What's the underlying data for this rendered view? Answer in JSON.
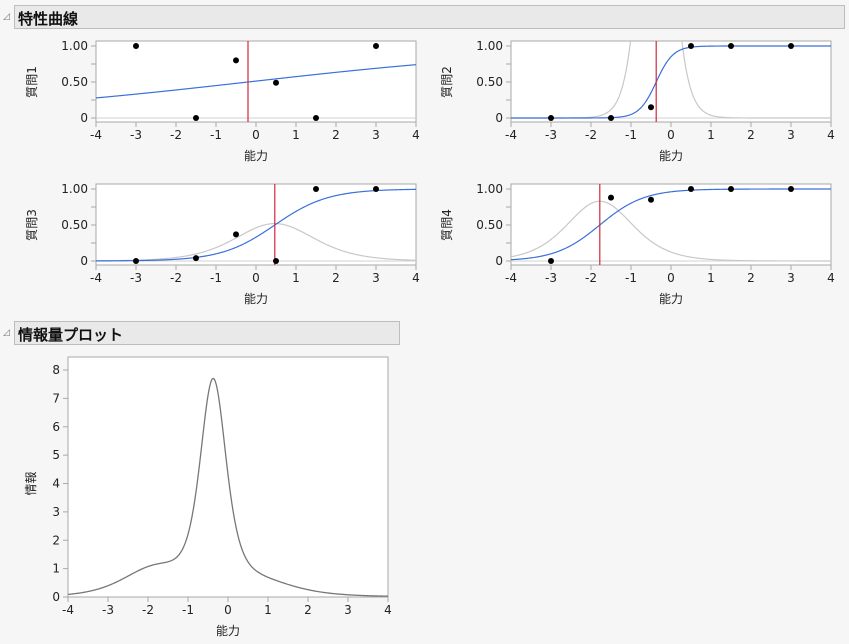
{
  "sections": {
    "icc": {
      "title": "特性曲線",
      "disclosure_icon": "◿"
    },
    "info": {
      "title": "情報量プロット",
      "disclosure_icon": "◿"
    }
  },
  "colors": {
    "icc_curve": "#3b6fdc",
    "info_curve_in_icc": "#c8c8c8",
    "threshold_line": "#d0283c",
    "info_curve": "#777777",
    "frame": "#a8a8a8",
    "points": "#000000"
  },
  "chart_data": [
    {
      "type": "line",
      "title": "質問1",
      "xlabel": "能力",
      "ylabel": "質問1",
      "xlim": [
        -4,
        4
      ],
      "ylim": [
        0,
        1
      ],
      "xticks": [
        -4,
        -3,
        -2,
        -1,
        0,
        1,
        2,
        3,
        4
      ],
      "yticks": [
        "0",
        "0.50",
        "1.00"
      ],
      "threshold": -0.2,
      "model": {
        "a": 0.25,
        "b": -0.2
      },
      "series": [
        {
          "name": "ICC",
          "x": [
            -4,
            -3,
            -2,
            -1,
            0,
            1,
            2,
            3,
            4
          ],
          "values": [
            0.28,
            0.33,
            0.39,
            0.43,
            0.51,
            0.57,
            0.63,
            0.68,
            0.74
          ]
        },
        {
          "name": "observed",
          "x": [
            -3,
            -1.5,
            -0.5,
            0.5,
            1.5,
            3
          ],
          "values": [
            1.0,
            0.0,
            0.8,
            0.49,
            0.0,
            1.0
          ]
        }
      ]
    },
    {
      "type": "line",
      "title": "質問2",
      "xlabel": "能力",
      "ylabel": "質問2",
      "xlim": [
        -4,
        4
      ],
      "ylim": [
        0,
        1
      ],
      "xticks": [
        -4,
        -3,
        -2,
        -1,
        0,
        1,
        2,
        3,
        4
      ],
      "yticks": [
        "0",
        "0.50",
        "1.00"
      ],
      "threshold": -0.37,
      "model": {
        "a": 4.7,
        "b": -0.37
      },
      "series": [
        {
          "name": "ICC",
          "x": [
            -4,
            -2,
            -1,
            -0.5,
            -0.37,
            0,
            0.5,
            1,
            2,
            4
          ],
          "values": [
            0,
            0,
            0.05,
            0.35,
            0.5,
            0.85,
            0.98,
            1.0,
            1.0,
            1.0
          ]
        },
        {
          "name": "observed",
          "x": [
            -3,
            -1.5,
            -0.5,
            0.5,
            1.5,
            3
          ],
          "values": [
            0.0,
            0.0,
            0.15,
            1.0,
            1.0,
            1.0
          ]
        }
      ]
    },
    {
      "type": "line",
      "title": "質問3",
      "xlabel": "能力",
      "ylabel": "質問3",
      "xlim": [
        -4,
        4
      ],
      "ylim": [
        0,
        1
      ],
      "xticks": [
        -4,
        -3,
        -2,
        -1,
        0,
        1,
        2,
        3,
        4
      ],
      "yticks": [
        "0",
        "0.50",
        "1.00"
      ],
      "threshold": 0.47,
      "model": {
        "a": 1.5,
        "b": 0.47
      },
      "series": [
        {
          "name": "ICC",
          "x": [
            -4,
            -3,
            -2,
            -1,
            0,
            0.47,
            1,
            2,
            3,
            4
          ],
          "values": [
            0.0,
            0.01,
            0.03,
            0.1,
            0.33,
            0.5,
            0.69,
            0.91,
            0.98,
            1.0
          ]
        },
        {
          "name": "observed",
          "x": [
            -3,
            -1.5,
            -0.5,
            0.5,
            1.5,
            3
          ],
          "values": [
            0.0,
            0.04,
            0.37,
            0.0,
            1.0,
            1.0
          ]
        }
      ]
    },
    {
      "type": "line",
      "title": "質問4",
      "xlabel": "能力",
      "ylabel": "質問4",
      "xlim": [
        -4,
        4
      ],
      "ylim": [
        0,
        1
      ],
      "xticks": [
        -4,
        -3,
        -2,
        -1,
        0,
        1,
        2,
        3,
        4
      ],
      "yticks": [
        "0",
        "0.50",
        "1.00"
      ],
      "threshold": -1.78,
      "model": {
        "a": 1.8,
        "b": -1.78
      },
      "series": [
        {
          "name": "ICC",
          "x": [
            -4,
            -3,
            -2,
            -1.78,
            -1,
            0,
            1,
            2,
            4
          ],
          "values": [
            0.02,
            0.1,
            0.4,
            0.5,
            0.8,
            0.96,
            0.99,
            1.0,
            1.0
          ]
        },
        {
          "name": "observed",
          "x": [
            -3,
            -1.5,
            -0.5,
            0.5,
            1.5,
            3
          ],
          "values": [
            0.0,
            0.88,
            0.85,
            1.0,
            1.0,
            1.0
          ]
        }
      ]
    },
    {
      "type": "line",
      "title": "情報量プロット",
      "xlabel": "能力",
      "ylabel": "情報",
      "xlim": [
        -4,
        4
      ],
      "ylim": [
        0,
        8
      ],
      "xticks": [
        -4,
        -3,
        -2,
        -1,
        0,
        1,
        2,
        3,
        4
      ],
      "yticks": [
        0,
        1,
        2,
        3,
        4,
        5,
        6,
        7,
        8
      ],
      "series": [
        {
          "name": "情報",
          "x": [
            -4,
            -3.5,
            -3,
            -2.5,
            -2,
            -1.5,
            -1.2,
            -1,
            -0.8,
            -0.6,
            -0.37,
            -0.2,
            0,
            0.2,
            0.5,
            1,
            1.5,
            2,
            2.5,
            3,
            4
          ],
          "values": [
            0.07,
            0.18,
            0.33,
            0.6,
            0.87,
            0.98,
            1.15,
            1.7,
            3.6,
            6.2,
            7.7,
            6.9,
            3.8,
            1.7,
            0.85,
            0.53,
            0.35,
            0.2,
            0.1,
            0.06,
            0.03
          ]
        }
      ]
    }
  ]
}
